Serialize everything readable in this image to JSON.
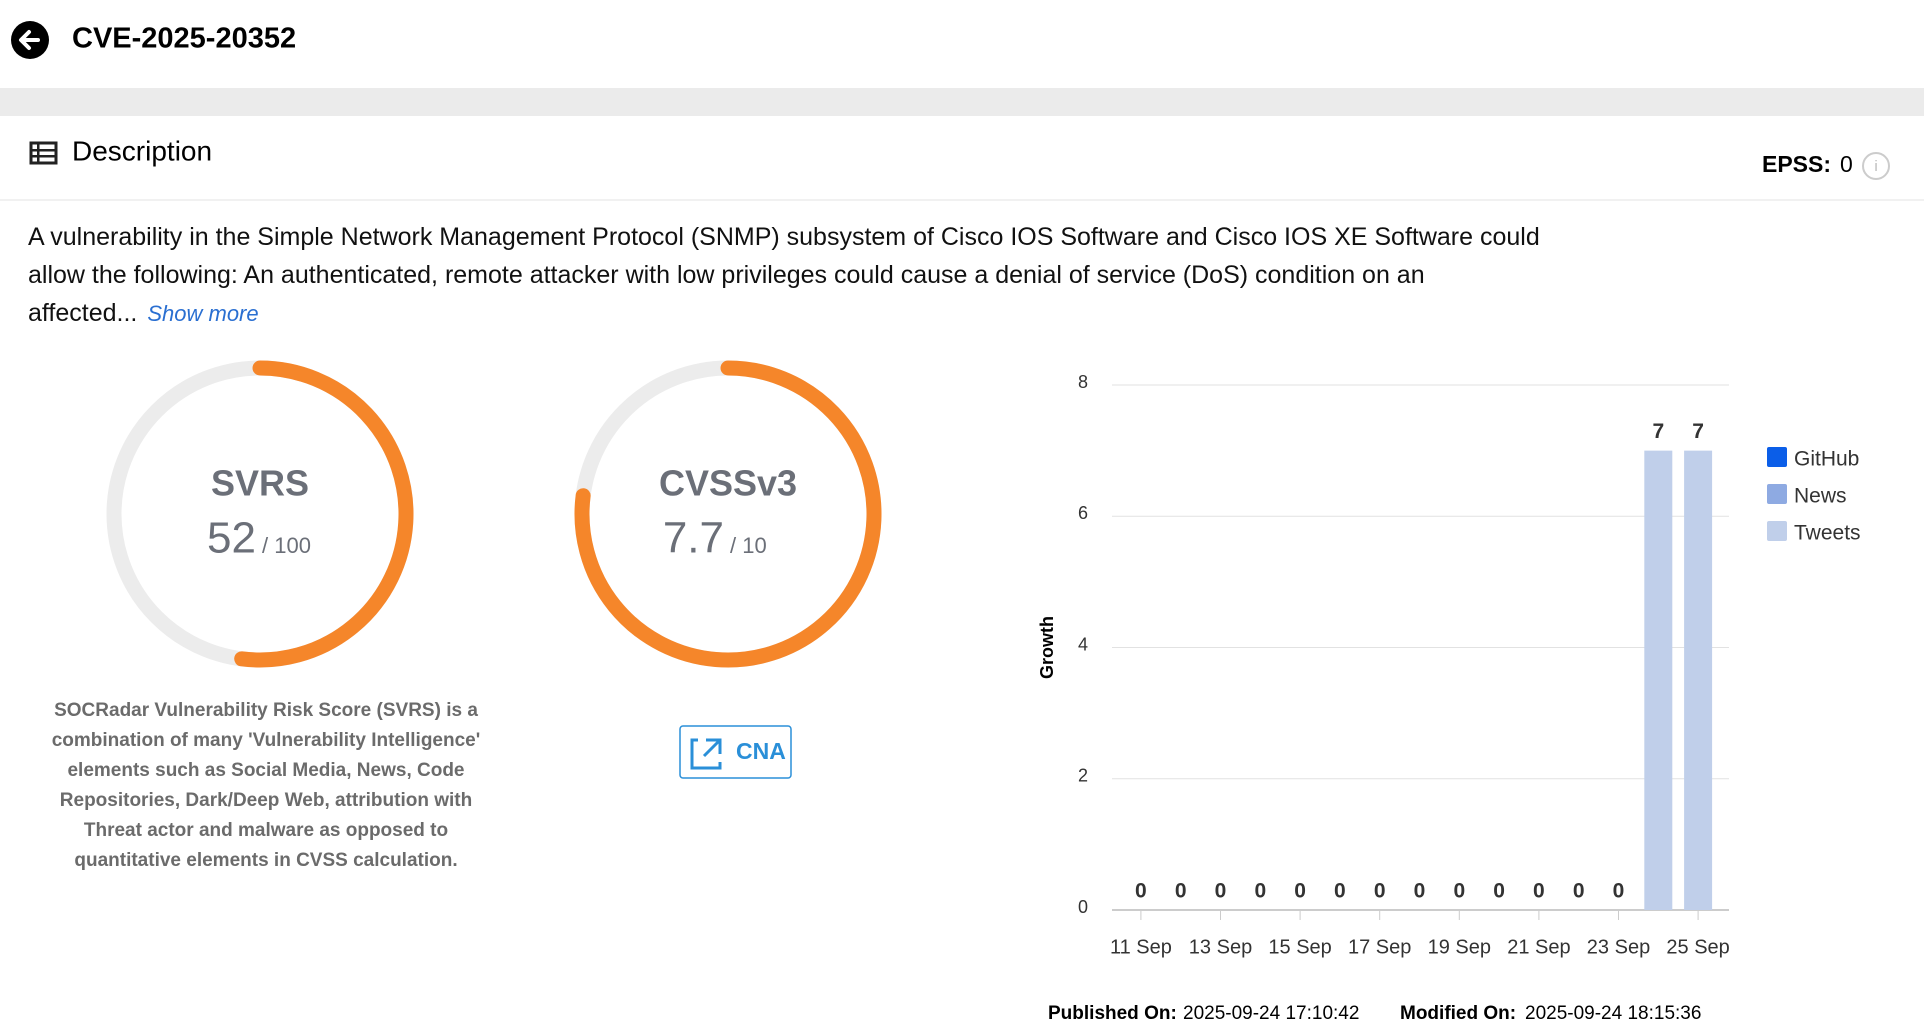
{
  "header": {
    "title": "CVE-2025-20352"
  },
  "description": {
    "heading": "Description",
    "text": "A vulnerability in the Simple Network Management Protocol (SNMP) subsystem of Cisco IOS Software and Cisco IOS XE Software could allow the following: An authenticated, remote attacker with low privileges could cause a denial of service (DoS) condition on an affected...",
    "show_more": "Show more"
  },
  "epss": {
    "label": "EPSS:",
    "value": 0
  },
  "gauges": [
    {
      "label": "SVRS",
      "value": 52,
      "max": {
        "value": 100,
        "label": "/ 100"
      }
    },
    {
      "label": "CVSSv3",
      "value": 7.7,
      "max": {
        "value": 10,
        "label": "/ 10"
      }
    }
  ],
  "svrs_note": "SOCRadar Vulnerability Risk Score (SVRS) is a combination of many 'Vulnerability Intelligence' elements such as Social Media, News, Code Repositories, Dark/Deep Web, attribution with Threat actor and malware as opposed to quantitative elements in CVSS calculation.",
  "cna_button": "CNA",
  "chart_data": {
    "type": "bar",
    "stacked": true,
    "y_label": "Growth",
    "categories": [
      "11 Sep",
      null,
      "13 Sep",
      null,
      "15 Sep",
      null,
      "17 Sep",
      null,
      "19 Sep",
      null,
      "21 Sep",
      null,
      "23 Sep",
      null,
      "25 Sep"
    ],
    "series": [
      {
        "name": "GitHub",
        "color": "#0b5ee8",
        "values": [
          0,
          0,
          0,
          0,
          0,
          0,
          0,
          0,
          0,
          0,
          0,
          0,
          0,
          0,
          0
        ]
      },
      {
        "name": "News",
        "color": "#8eaae2",
        "values": [
          0,
          0,
          0,
          0,
          0,
          0,
          0,
          0,
          0,
          0,
          0,
          0,
          0,
          0,
          0
        ]
      },
      {
        "name": "Tweets",
        "color": "#c0cfea",
        "values": [
          0,
          0,
          0,
          0,
          0,
          0,
          0,
          0,
          0,
          0,
          0,
          0,
          0,
          7,
          7
        ]
      }
    ],
    "ylim": [
      0,
      8
    ],
    "yticks": [
      0,
      2,
      4,
      6,
      8
    ],
    "grid": true,
    "legend": "right"
  },
  "footer": {
    "published_label": "Published On:",
    "published": "2025-09-24 17:10:42",
    "modified_label": "Modified On:",
    "modified": "2025-09-24 18:15:36"
  }
}
